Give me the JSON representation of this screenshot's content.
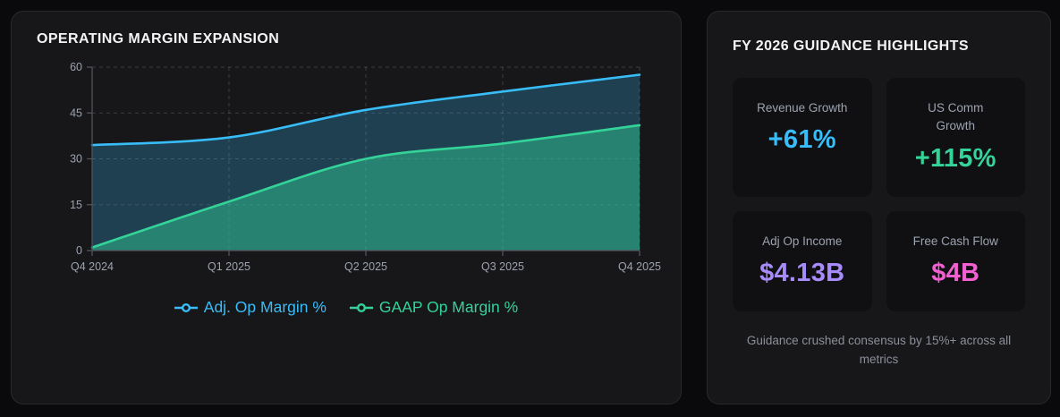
{
  "left_panel": {
    "title": "OPERATING MARGIN EXPANSION"
  },
  "chart_data": {
    "type": "area",
    "title": "Operating Margin Expansion",
    "categories": [
      "Q4 2024",
      "Q1 2025",
      "Q2 2025",
      "Q3 2025",
      "Q4 2025"
    ],
    "series": [
      {
        "name": "Adj. Op Margin %",
        "color": "#38bdf8",
        "fill": "rgba(56,189,248,0.25)",
        "values": [
          34.5,
          37,
          46,
          52,
          57.5
        ]
      },
      {
        "name": "GAAP Op Margin %",
        "color": "#34d399",
        "fill": "rgba(52,211,153,0.45)",
        "values": [
          1,
          16,
          30,
          35,
          41
        ]
      }
    ],
    "ylim": [
      0,
      60
    ],
    "y_ticks": [
      0,
      15,
      30,
      45,
      60
    ],
    "grid": "dashed",
    "legend_position": "bottom"
  },
  "guidance": {
    "title": "FY 2026 GUIDANCE HIGHLIGHTS",
    "cards": [
      {
        "label": "Revenue Growth",
        "value": "+61%",
        "color": "#38bdf8"
      },
      {
        "label": "US Comm\nGrowth",
        "value": "+115%",
        "color": "#34d399"
      },
      {
        "label": "Adj Op Income",
        "value": "$4.13B",
        "color": "#a78bfa"
      },
      {
        "label": "Free Cash Flow",
        "value": "$4B",
        "color": "#f25fd0"
      }
    ],
    "footnote": "Guidance crushed consensus by 15%+ across all metrics"
  },
  "theme": {
    "page_bg": "#0a0a0c",
    "panel_bg": "#17171a",
    "card_bg": "#101013",
    "axis_color": "#52525b",
    "grid_color": "rgba(161,161,170,0.28)",
    "tick_label_color": "#9ca3af"
  }
}
